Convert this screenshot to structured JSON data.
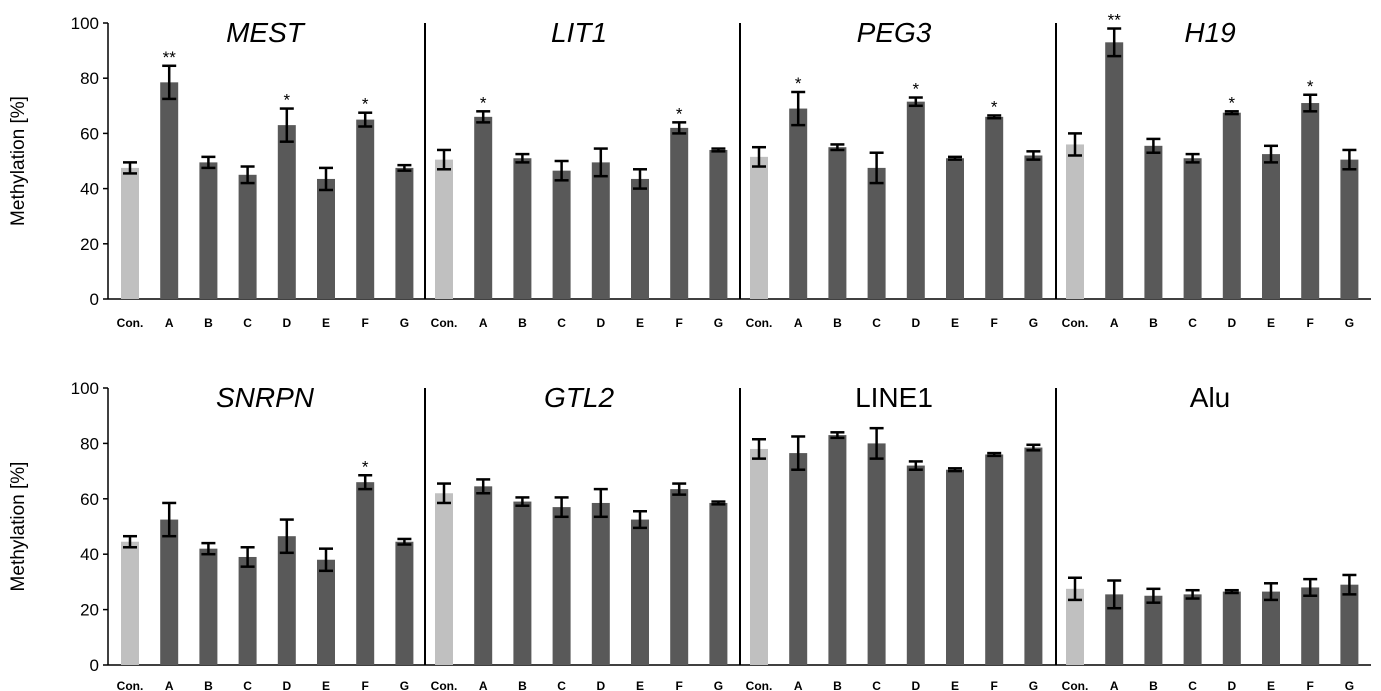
{
  "colors": {
    "control": "#c0c0c0",
    "treatment": "#595959",
    "axis": "#000000"
  },
  "chart_data": [
    {
      "type": "bar",
      "ylabel": "Methylation [%]",
      "ylim": [
        0,
        100
      ],
      "yticks": [
        0,
        20,
        40,
        60,
        80,
        100
      ],
      "categories": [
        "Con.",
        "A",
        "B",
        "C",
        "D",
        "E",
        "F",
        "G"
      ],
      "panels": [
        {
          "title": "MEST",
          "italic": true,
          "values": [
            47.5,
            78.5,
            49.5,
            45,
            63,
            43.5,
            65,
            47.5
          ],
          "errors": [
            2,
            6,
            2,
            3,
            6,
            4,
            2.5,
            1
          ],
          "significance": [
            "",
            "**",
            "",
            "",
            "*",
            "",
            "*",
            ""
          ]
        },
        {
          "title": "LIT1",
          "italic": true,
          "values": [
            50.5,
            66,
            51,
            46.5,
            49.5,
            43.5,
            62,
            54
          ],
          "errors": [
            3.5,
            2,
            1.5,
            3.5,
            5,
            3.5,
            2,
            0.5
          ],
          "significance": [
            "",
            "*",
            "",
            "",
            "",
            "",
            "*",
            ""
          ]
        },
        {
          "title": "PEG3",
          "italic": true,
          "values": [
            51.5,
            69,
            55,
            47.5,
            71.5,
            51,
            66,
            52
          ],
          "errors": [
            3.5,
            6,
            1,
            5.5,
            1.5,
            0.5,
            0.5,
            1.5
          ],
          "significance": [
            "",
            "*",
            "",
            "",
            "*",
            "",
            "*",
            ""
          ]
        },
        {
          "title": "H19",
          "italic": true,
          "values": [
            56,
            93,
            55.5,
            51,
            67.5,
            52.5,
            71,
            50.5
          ],
          "errors": [
            4,
            5,
            2.5,
            1.5,
            0.5,
            3,
            3,
            3.5
          ],
          "significance": [
            "",
            "**",
            "",
            "",
            "*",
            "",
            "*",
            ""
          ]
        }
      ]
    },
    {
      "type": "bar",
      "ylabel": "Methylation [%]",
      "ylim": [
        0,
        100
      ],
      "yticks": [
        0,
        20,
        40,
        60,
        80,
        100
      ],
      "categories": [
        "Con.",
        "A",
        "B",
        "C",
        "D",
        "E",
        "F",
        "G"
      ],
      "panels": [
        {
          "title": "SNRPN",
          "italic": true,
          "values": [
            44.5,
            52.5,
            42,
            39,
            46.5,
            38,
            66,
            44.5
          ],
          "errors": [
            2,
            6,
            2,
            3.5,
            6,
            4,
            2.5,
            1
          ],
          "significance": [
            "",
            "",
            "",
            "",
            "",
            "",
            "*",
            ""
          ]
        },
        {
          "title": "GTL2",
          "italic": true,
          "values": [
            62,
            64.5,
            59,
            57,
            58.5,
            52.5,
            63.5,
            58.5
          ],
          "errors": [
            3.5,
            2.5,
            1.5,
            3.5,
            5,
            3,
            2,
            0.5
          ],
          "significance": [
            "",
            "",
            "",
            "",
            "",
            "",
            "",
            ""
          ]
        },
        {
          "title": "LINE1",
          "italic": false,
          "values": [
            78,
            76.5,
            83,
            80,
            72,
            70.5,
            76,
            78.5
          ],
          "errors": [
            3.5,
            6,
            1,
            5.5,
            1.5,
            0.5,
            0.5,
            1
          ],
          "significance": [
            "",
            "",
            "",
            "",
            "",
            "",
            "",
            ""
          ]
        },
        {
          "title": "Alu",
          "italic": false,
          "values": [
            27.5,
            25.5,
            25,
            25.5,
            26.5,
            26.5,
            28,
            29
          ],
          "errors": [
            4,
            5,
            2.5,
            1.5,
            0.5,
            3,
            3,
            3.5
          ],
          "significance": [
            "",
            "",
            "",
            "",
            "",
            "",
            "",
            ""
          ]
        }
      ]
    }
  ]
}
